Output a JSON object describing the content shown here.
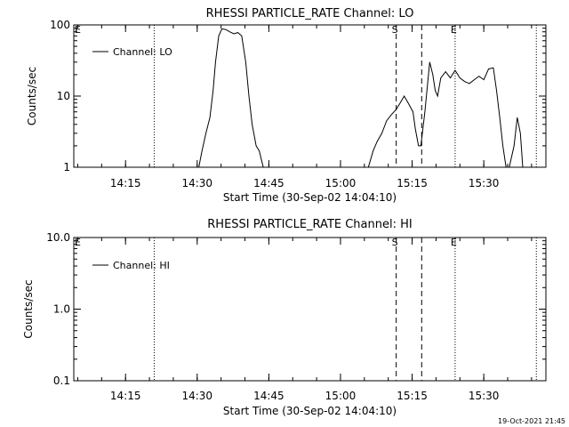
{
  "footer": {
    "timestamp": "19-Oct-2021 21:45"
  },
  "colors": {
    "background": "#ffffff",
    "ink": "#000000"
  },
  "chart_data": [
    {
      "type": "line",
      "title": "RHESSI PARTICLE_RATE Channel: LO",
      "xlabel": "Start Time (30-Sep-02 14:04:10)",
      "ylabel": "Counts/sec",
      "yscale": "log",
      "ylim": [
        1,
        100
      ],
      "yticks": [
        1,
        10,
        100
      ],
      "ytick_labels": [
        "1",
        "10",
        "100"
      ],
      "xlim": [
        "14:04:10",
        "15:43:00"
      ],
      "xticks": [
        "14:15",
        "14:30",
        "14:45",
        "15:00",
        "15:15",
        "15:30"
      ],
      "legend": {
        "position": "top-left",
        "entries": [
          "Channel: LO"
        ]
      },
      "grid": false,
      "markers": [
        {
          "time": "14:21:00",
          "style": "dotted",
          "label": ""
        },
        {
          "time": "15:11:40",
          "style": "dashed",
          "label": "S"
        },
        {
          "time": "15:17:00",
          "style": "dashed",
          "label": ""
        },
        {
          "time": "15:24:00",
          "style": "dotted",
          "label": "E"
        },
        {
          "time": "15:41:00",
          "style": "dotted",
          "label": ""
        }
      ],
      "corner_labels": [
        "E"
      ],
      "series": [
        {
          "name": "Channel: LO",
          "segments": [
            [
              [
                "14:30:20",
                1.0
              ],
              [
                "14:31:00",
                1.7
              ],
              [
                "14:31:50",
                3.0
              ],
              [
                "14:32:40",
                5.0
              ],
              [
                "14:33:20",
                12.0
              ],
              [
                "14:33:50",
                30.0
              ],
              [
                "14:34:30",
                70.0
              ],
              [
                "14:35:10",
                88.0
              ],
              [
                "14:36:00",
                86.0
              ],
              [
                "14:36:50",
                80.0
              ],
              [
                "14:37:40",
                75.0
              ],
              [
                "14:38:30",
                78.0
              ],
              [
                "14:39:20",
                70.0
              ],
              [
                "14:40:10",
                30.0
              ],
              [
                "14:40:50",
                10.0
              ],
              [
                "14:41:30",
                4.0
              ],
              [
                "14:42:20",
                2.0
              ],
              [
                "14:43:00",
                1.7
              ],
              [
                "14:43:50",
                1.0
              ]
            ],
            [
              [
                "15:05:50",
                1.0
              ],
              [
                "15:06:50",
                1.7
              ],
              [
                "15:07:40",
                2.3
              ],
              [
                "15:08:40",
                3.0
              ],
              [
                "15:09:40",
                4.5
              ],
              [
                "15:10:40",
                5.5
              ],
              [
                "15:11:40",
                6.5
              ],
              [
                "15:12:30",
                8.0
              ],
              [
                "15:13:20",
                10.0
              ],
              [
                "15:14:10",
                8.0
              ],
              [
                "15:15:10",
                6.0
              ],
              [
                "15:15:40",
                3.5
              ],
              [
                "15:16:20",
                2.0
              ],
              [
                "15:16:50",
                2.0
              ],
              [
                "15:17:40",
                6.0
              ],
              [
                "15:18:40",
                30.0
              ],
              [
                "15:19:20",
                20.0
              ],
              [
                "15:19:50",
                12.0
              ],
              [
                "15:20:20",
                10.0
              ],
              [
                "15:21:00",
                18.0
              ],
              [
                "15:22:00",
                22.0
              ],
              [
                "15:23:00",
                18.0
              ],
              [
                "15:24:00",
                23.0
              ],
              [
                "15:25:00",
                18.0
              ],
              [
                "15:26:00",
                16.0
              ],
              [
                "15:27:00",
                15.0
              ],
              [
                "15:28:00",
                17.0
              ],
              [
                "15:29:00",
                19.0
              ],
              [
                "15:30:00",
                17.0
              ],
              [
                "15:31:00",
                24.0
              ],
              [
                "15:32:00",
                25.0
              ],
              [
                "15:32:40",
                12.0
              ],
              [
                "15:33:20",
                5.0
              ],
              [
                "15:34:00",
                2.0
              ],
              [
                "15:34:40",
                1.0
              ]
            ],
            [
              [
                "15:35:20",
                1.0
              ],
              [
                "15:36:20",
                2.0
              ],
              [
                "15:37:00",
                5.0
              ],
              [
                "15:37:40",
                3.0
              ],
              [
                "15:38:10",
                1.0
              ]
            ]
          ]
        }
      ]
    },
    {
      "type": "line",
      "title": "RHESSI PARTICLE_RATE Channel: HI",
      "xlabel": "Start Time (30-Sep-02 14:04:10)",
      "ylabel": "Counts/sec",
      "yscale": "log",
      "ylim": [
        0.1,
        10
      ],
      "yticks": [
        0.1,
        1,
        10
      ],
      "ytick_labels": [
        "0.1",
        "1.0",
        "10.0"
      ],
      "xlim": [
        "14:04:10",
        "15:43:00"
      ],
      "xticks": [
        "14:15",
        "14:30",
        "14:45",
        "15:00",
        "15:15",
        "15:30"
      ],
      "legend": {
        "position": "top-left",
        "entries": [
          "Channel: HI"
        ]
      },
      "grid": false,
      "markers": [
        {
          "time": "14:21:00",
          "style": "dotted",
          "label": ""
        },
        {
          "time": "15:11:40",
          "style": "dashed",
          "label": "S"
        },
        {
          "time": "15:17:00",
          "style": "dashed",
          "label": ""
        },
        {
          "time": "15:24:00",
          "style": "dotted",
          "label": "E"
        },
        {
          "time": "15:41:00",
          "style": "dotted",
          "label": ""
        }
      ],
      "corner_labels": [
        "E"
      ],
      "series": [
        {
          "name": "Channel: HI",
          "segments": []
        }
      ]
    }
  ]
}
